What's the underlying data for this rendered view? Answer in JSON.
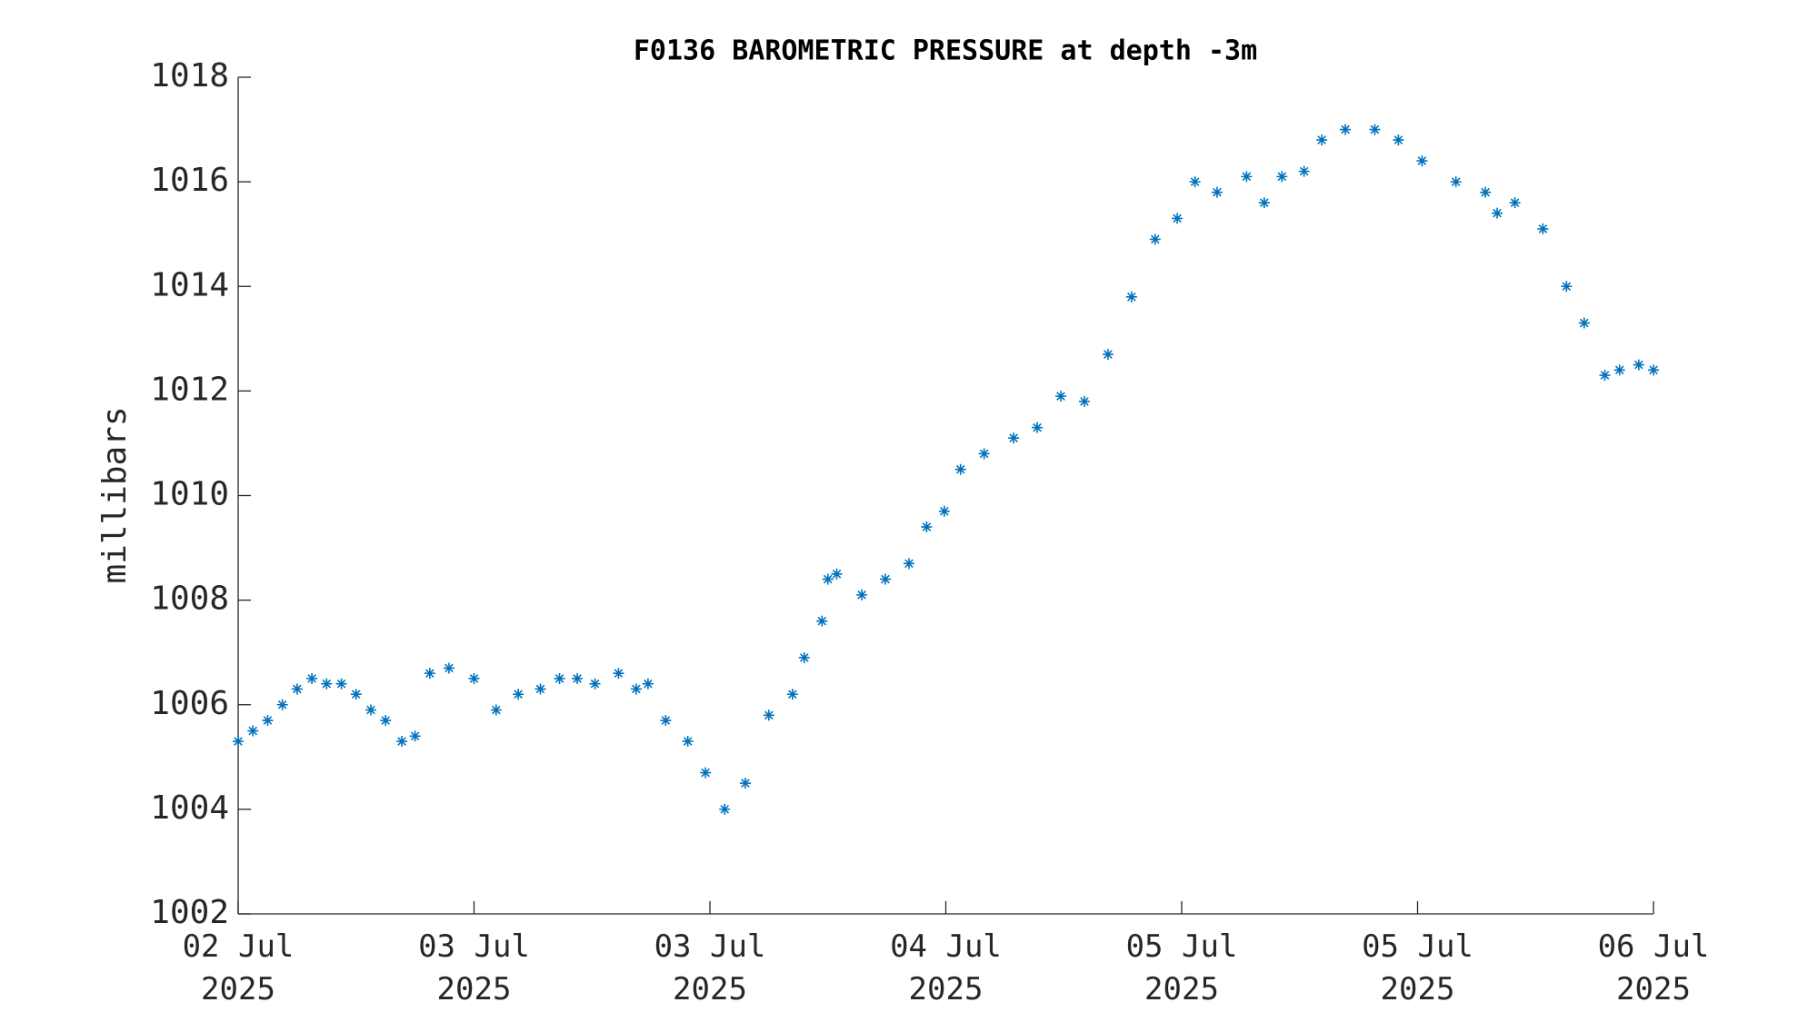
{
  "chart_data": {
    "type": "scatter",
    "title": "F0136 BAROMETRIC PRESSURE at depth -3m",
    "ylabel": "millibars",
    "series": [
      {
        "name": "pressure",
        "color": "#0072bd",
        "marker": "asterisk",
        "x": [
          0,
          1,
          2,
          3,
          4,
          5,
          6,
          7,
          8,
          9,
          10,
          11.1,
          12,
          13,
          14.3,
          16,
          17.5,
          19,
          20.5,
          21.8,
          23,
          24.2,
          25.8,
          27,
          27.8,
          29,
          30.5,
          31.7,
          33,
          34.4,
          36,
          37.6,
          38.4,
          39.6,
          40,
          40.6,
          42.3,
          43.9,
          45.5,
          46.7,
          47.9,
          49,
          50.6,
          52.6,
          54.2,
          55.8,
          57.4,
          59,
          60.6,
          62.2,
          63.7,
          64.9,
          66.4,
          68.4,
          69.6,
          70.8,
          72.3,
          73.5,
          75.1,
          77.1,
          78.7,
          80.3,
          82.6,
          84.6,
          85.4,
          86.6,
          88.5,
          90.1,
          91.3,
          92.7,
          93.7,
          95,
          96
        ],
        "values": [
          1005.3,
          1005.5,
          1005.7,
          1006.0,
          1006.3,
          1006.5,
          1006.4,
          1006.4,
          1006.2,
          1005.9,
          1005.7,
          1005.3,
          1005.4,
          1006.6,
          1006.7,
          1006.5,
          1005.9,
          1006.2,
          1006.3,
          1006.5,
          1006.5,
          1006.4,
          1006.6,
          1006.3,
          1006.4,
          1005.7,
          1005.3,
          1004.7,
          1004.0,
          1004.5,
          1005.8,
          1006.2,
          1006.9,
          1007.6,
          1008.4,
          1008.5,
          1008.1,
          1008.4,
          1008.7,
          1009.4,
          1009.7,
          1010.5,
          1010.8,
          1011.1,
          1011.3,
          1011.9,
          1011.8,
          1012.7,
          1013.8,
          1014.9,
          1015.3,
          1016.0,
          1015.8,
          1016.1,
          1015.6,
          1016.1,
          1016.2,
          1016.8,
          1017.0,
          1017.0,
          1016.8,
          1016.4,
          1016.0,
          1015.8,
          1015.4,
          1015.6,
          1015.1,
          1014.0,
          1013.3,
          1012.3,
          1012.4,
          1012.5,
          1012.4
        ]
      }
    ],
    "xlim": [
      0,
      96
    ],
    "xticks": [
      {
        "value": 0,
        "label": "02 Jul\n2025"
      },
      {
        "value": 16,
        "label": "03 Jul\n2025"
      },
      {
        "value": 32,
        "label": "03 Jul\n2025"
      },
      {
        "value": 48,
        "label": "04 Jul\n2025"
      },
      {
        "value": 64,
        "label": "05 Jul\n2025"
      },
      {
        "value": 80,
        "label": "05 Jul\n2025"
      },
      {
        "value": 96,
        "label": "06 Jul\n2025"
      }
    ],
    "ylim": [
      1002,
      1018
    ],
    "yticks": [
      1002,
      1004,
      1006,
      1008,
      1010,
      1012,
      1014,
      1016,
      1018
    ],
    "grid": false
  }
}
